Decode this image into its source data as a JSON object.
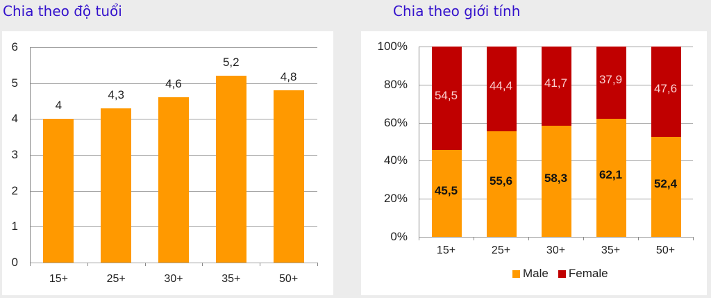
{
  "titles": {
    "age": "Chia theo độ tuổi",
    "gender": "Chia theo giới tính"
  },
  "colors": {
    "male": "#ff9900",
    "female": "#c00000",
    "bar": "#ff9900"
  },
  "chart_data": [
    {
      "type": "bar",
      "title": "Chia theo độ tuổi",
      "categories": [
        "15+",
        "25+",
        "30+",
        "35+",
        "50+"
      ],
      "values": [
        4,
        4.3,
        4.6,
        5.2,
        4.8
      ],
      "value_labels": [
        "4",
        "4,3",
        "4,6",
        "5,2",
        "4,8"
      ],
      "yticks": [
        "0",
        "1",
        "2",
        "3",
        "4",
        "5",
        "6"
      ],
      "ylim": [
        0,
        6
      ],
      "grid": true,
      "xlabel": "",
      "ylabel": ""
    },
    {
      "type": "bar",
      "stacked": true,
      "title": "Chia theo giới tính",
      "categories": [
        "15+",
        "25+",
        "30+",
        "35+",
        "50+"
      ],
      "series": [
        {
          "name": "Male",
          "values": [
            45.5,
            55.6,
            58.3,
            62.1,
            52.4
          ],
          "labels": [
            "45,5",
            "55,6",
            "58,3",
            "62,1",
            "52,4"
          ]
        },
        {
          "name": "Female",
          "values": [
            54.5,
            44.4,
            41.7,
            37.9,
            47.6
          ],
          "labels": [
            "54,5",
            "44,4",
            "41,7",
            "37,9",
            "47,6"
          ]
        }
      ],
      "yticks": [
        "0%",
        "20%",
        "40%",
        "60%",
        "80%",
        "100%"
      ],
      "ylim": [
        0,
        100
      ],
      "grid": true,
      "legend_position": "bottom"
    }
  ]
}
